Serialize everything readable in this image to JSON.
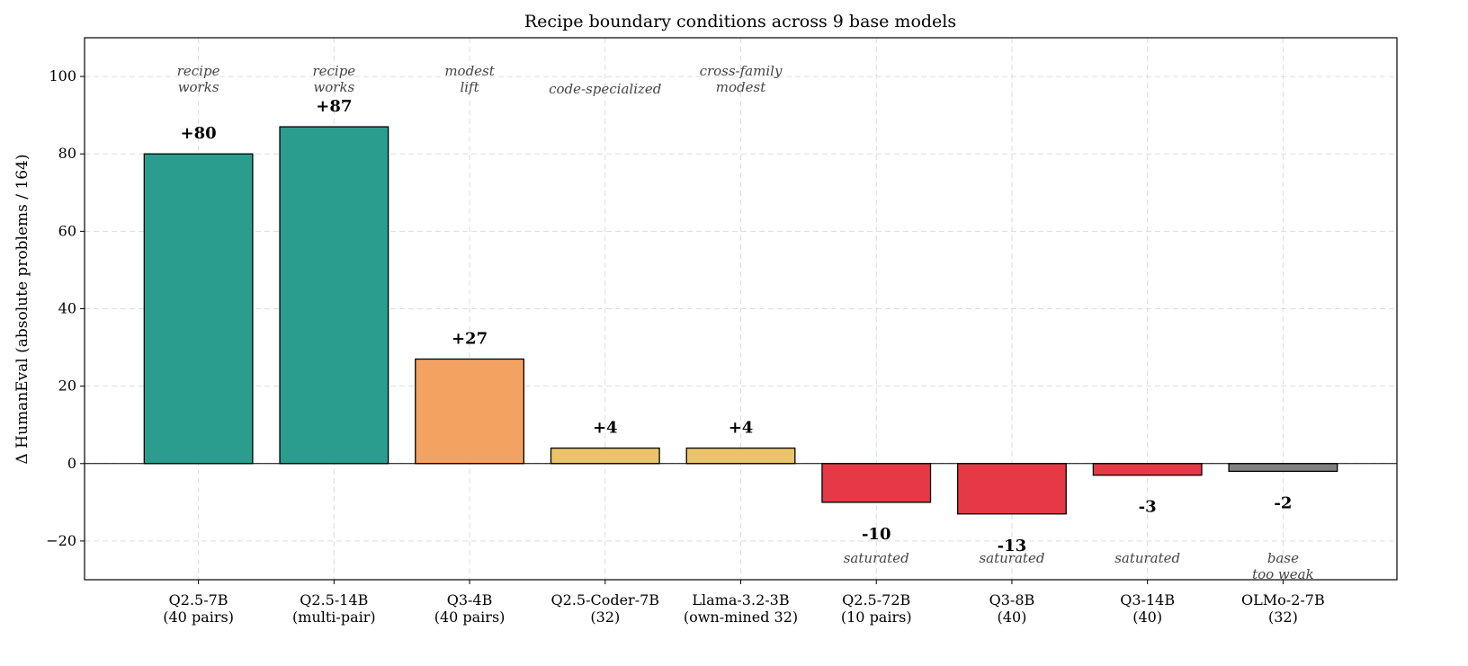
{
  "chart_data": {
    "type": "bar",
    "title": "Recipe boundary conditions across 9 base models",
    "y_label": "Δ HumanEval (absolute problems / 164)",
    "categories": [
      "Q2.5-7B\n(40 pairs)",
      "Q2.5-14B\n(multi-pair)",
      "Q3-4B\n(40 pairs)",
      "Q2.5-Coder-7B\n(32)",
      "Llama-3.2-3B\n(own-mined 32)",
      "Q2.5-72B\n(10 pairs)",
      "Q3-8B\n(40)",
      "Q3-14B\n(40)",
      "OLMo-2-7B\n(32)"
    ],
    "values": [
      80,
      87,
      27,
      4,
      4,
      -10,
      -13,
      -3,
      -2
    ],
    "value_labels": [
      "+80",
      "+87",
      "+27",
      "+4",
      "+4",
      "-10",
      "-13",
      "-3",
      "-2"
    ],
    "colors": [
      "#2a9d8f",
      "#2a9d8f",
      "#f4a261",
      "#e9c46a",
      "#e9c46a",
      "#e63946",
      "#e63946",
      "#e63946",
      "#808080"
    ],
    "annotations": [
      "recipe\nworks",
      "recipe\nworks",
      "modest\nlift",
      "code-specialized",
      "cross-family\nmodest",
      "saturated",
      "saturated",
      "saturated",
      "base\ntoo weak"
    ],
    "ylim": [
      -30,
      110
    ],
    "yticks": [
      {
        "value": -20,
        "label": "−20"
      },
      0,
      20,
      40,
      60,
      80,
      100
    ],
    "grid": true
  }
}
